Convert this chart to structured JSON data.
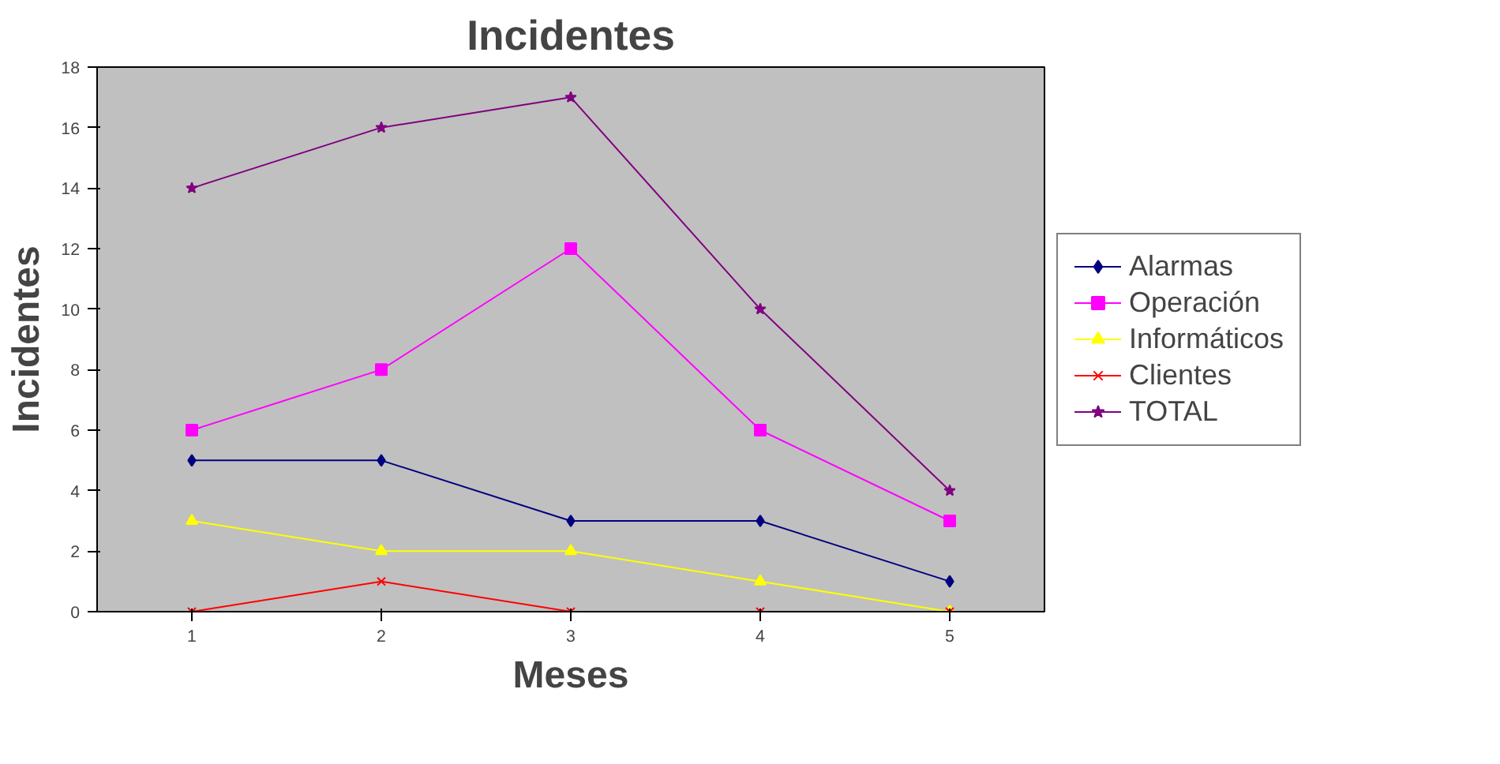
{
  "chart_data": {
    "type": "line",
    "title": "Incidentes",
    "xlabel": "Meses",
    "ylabel": "Incidentes",
    "categories": [
      "1",
      "2",
      "3",
      "4",
      "5"
    ],
    "series": [
      {
        "name": "Alarmas",
        "color": "#000080",
        "marker": "diamond",
        "values": [
          5,
          5,
          3,
          3,
          1
        ]
      },
      {
        "name": "Operación",
        "color": "#ff00ff",
        "marker": "square",
        "values": [
          6,
          8,
          12,
          6,
          3
        ]
      },
      {
        "name": "Informáticos",
        "color": "#ffff00",
        "marker": "triangle",
        "values": [
          3,
          2,
          2,
          1,
          0
        ]
      },
      {
        "name": "Clientes",
        "color": "#ff0000",
        "marker": "cross",
        "values": [
          0,
          1,
          0,
          0,
          0
        ]
      },
      {
        "name": "TOTAL",
        "color": "#800080",
        "marker": "star",
        "values": [
          14,
          16,
          17,
          10,
          4
        ]
      }
    ],
    "ylim": [
      0,
      18
    ],
    "yticks": [
      0,
      2,
      4,
      6,
      8,
      10,
      12,
      14,
      16,
      18
    ],
    "grid": false,
    "legend": "right"
  }
}
